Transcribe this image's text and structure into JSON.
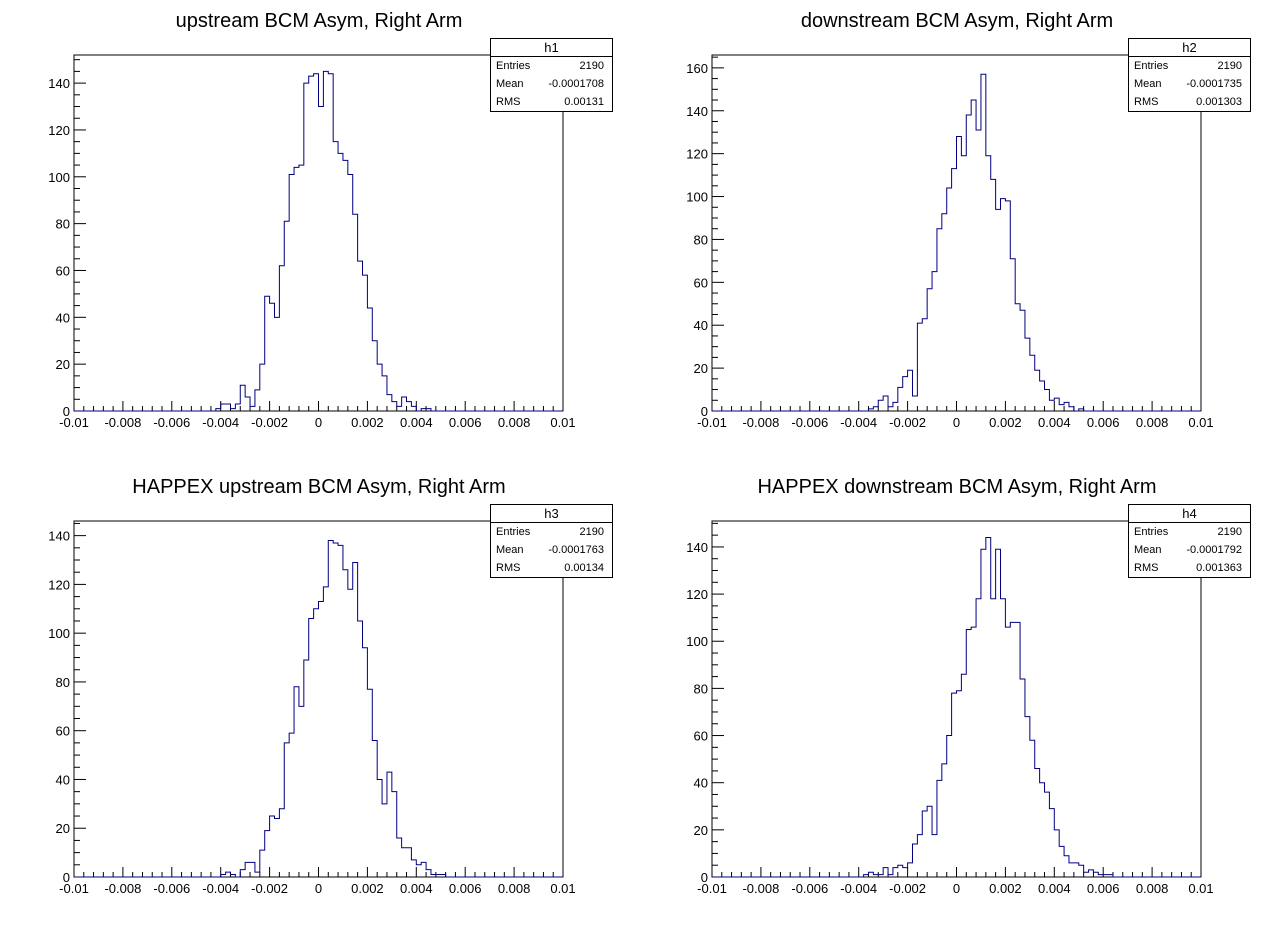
{
  "colors": {
    "histogram_line": "#000080",
    "axis": "#000000"
  },
  "chart_data": [
    {
      "type": "bar",
      "title": "upstream BCM Asym, Right Arm",
      "stats": {
        "name": "h1",
        "entries_label": "Entries",
        "entries": "2190",
        "mean_label": "Mean",
        "mean": "-0.0001708",
        "rms_label": "RMS",
        "rms": "0.00131"
      },
      "xlim": [
        -0.01,
        0.01
      ],
      "ylim": [
        0,
        152
      ],
      "x_ticks": [
        "-0.01",
        "-0.008",
        "-0.006",
        "-0.004",
        "-0.002",
        "0",
        "0.002",
        "0.004",
        "0.006",
        "0.008",
        "0.01"
      ],
      "y_ticks": [
        0,
        20,
        40,
        60,
        80,
        100,
        120,
        140
      ],
      "bins": 100,
      "values": [
        0,
        0,
        0,
        0,
        0,
        0,
        0,
        0,
        0,
        0,
        0,
        0,
        0,
        0,
        0,
        0,
        0,
        0,
        0,
        0,
        0,
        0,
        0,
        0,
        0,
        0,
        0,
        0,
        0,
        1,
        3,
        3,
        1,
        3,
        11,
        6,
        2,
        9,
        20,
        49,
        46,
        40,
        62,
        81,
        101,
        104,
        105,
        140,
        143,
        144,
        130,
        145,
        144,
        115,
        110,
        107,
        101,
        84,
        64,
        58,
        44,
        30,
        20,
        15,
        7,
        4,
        2,
        6,
        4,
        2,
        0,
        1,
        1,
        0,
        0,
        0,
        0,
        0,
        0,
        0,
        0,
        0,
        0,
        0,
        0,
        0,
        0,
        0,
        0,
        0,
        0,
        0,
        0,
        0,
        0,
        0,
        0,
        0,
        0,
        0
      ]
    },
    {
      "type": "bar",
      "title": "downstream BCM Asym, Right Arm",
      "stats": {
        "name": "h2",
        "entries_label": "Entries",
        "entries": "2190",
        "mean_label": "Mean",
        "mean": "-0.0001735",
        "rms_label": "RMS",
        "rms": "0.001303"
      },
      "xlim": [
        -0.01,
        0.01
      ],
      "ylim": [
        0,
        166
      ],
      "x_ticks": [
        "-0.01",
        "-0.008",
        "-0.006",
        "-0.004",
        "-0.002",
        "0",
        "0.002",
        "0.004",
        "0.006",
        "0.008",
        "0.01"
      ],
      "y_ticks": [
        0,
        20,
        40,
        60,
        80,
        100,
        120,
        140,
        160
      ],
      "bins": 100,
      "values": [
        0,
        0,
        0,
        0,
        0,
        0,
        0,
        0,
        0,
        0,
        0,
        0,
        0,
        0,
        0,
        0,
        0,
        0,
        0,
        0,
        0,
        0,
        0,
        0,
        0,
        0,
        0,
        0,
        0,
        0,
        0,
        0,
        1,
        2,
        5,
        7,
        2,
        4,
        11,
        16,
        19,
        7,
        41,
        43,
        57,
        65,
        85,
        92,
        104,
        113,
        128,
        119,
        138,
        145,
        131,
        157,
        119,
        108,
        94,
        99,
        98,
        71,
        50,
        47,
        34,
        26,
        19,
        14,
        10,
        5,
        6,
        3,
        4,
        2,
        0,
        1,
        0,
        0,
        0,
        0,
        0,
        0,
        0,
        0,
        0,
        0,
        0,
        0,
        0,
        0,
        0,
        0,
        0,
        0,
        0,
        0,
        0,
        0,
        0,
        0
      ]
    },
    {
      "type": "bar",
      "title": "HAPPEX upstream BCM Asym, Right Arm",
      "stats": {
        "name": "h3",
        "entries_label": "Entries",
        "entries": "2190",
        "mean_label": "Mean",
        "mean": "-0.0001763",
        "rms_label": "RMS",
        "rms": "0.00134"
      },
      "xlim": [
        -0.01,
        0.01
      ],
      "ylim": [
        0,
        146
      ],
      "x_ticks": [
        "-0.01",
        "-0.008",
        "-0.006",
        "-0.004",
        "-0.002",
        "0",
        "0.002",
        "0.004",
        "0.006",
        "0.008",
        "0.01"
      ],
      "y_ticks": [
        0,
        20,
        40,
        60,
        80,
        100,
        120,
        140
      ],
      "bins": 100,
      "values": [
        0,
        0,
        0,
        0,
        0,
        0,
        0,
        0,
        0,
        0,
        0,
        0,
        0,
        0,
        0,
        0,
        0,
        0,
        0,
        0,
        0,
        0,
        0,
        0,
        0,
        0,
        0,
        0,
        0,
        0,
        1,
        2,
        1,
        0,
        3,
        6,
        6,
        2,
        11,
        19,
        25,
        24,
        28,
        55,
        59,
        78,
        70,
        89,
        106,
        110,
        113,
        119,
        138,
        137,
        136,
        126,
        118,
        129,
        105,
        94,
        77,
        56,
        40,
        30,
        43,
        35,
        16,
        12,
        12,
        7,
        5,
        6,
        3,
        1,
        1,
        1,
        0,
        0,
        0,
        0,
        0,
        0,
        0,
        0,
        0,
        0,
        0,
        0,
        0,
        0,
        0,
        0,
        0,
        0,
        0,
        0,
        0,
        0,
        0,
        0
      ]
    },
    {
      "type": "bar",
      "title": "HAPPEX downstream BCM Asym, Right Arm",
      "stats": {
        "name": "h4",
        "entries_label": "Entries",
        "entries": "2190",
        "mean_label": "Mean",
        "mean": "-0.0001792",
        "rms_label": "RMS",
        "rms": "0.001363"
      },
      "xlim": [
        -0.01,
        0.01
      ],
      "ylim": [
        0,
        151
      ],
      "x_ticks": [
        "-0.01",
        "-0.008",
        "-0.006",
        "-0.004",
        "-0.002",
        "0",
        "0.002",
        "0.004",
        "0.006",
        "0.008",
        "0.01"
      ],
      "y_ticks": [
        0,
        20,
        40,
        60,
        80,
        100,
        120,
        140
      ],
      "bins": 100,
      "values": [
        0,
        0,
        0,
        0,
        0,
        0,
        0,
        0,
        0,
        0,
        0,
        0,
        0,
        0,
        0,
        0,
        0,
        0,
        0,
        0,
        0,
        0,
        0,
        0,
        0,
        0,
        0,
        0,
        0,
        0,
        0,
        1,
        2,
        1,
        1,
        4,
        1,
        4,
        5,
        4,
        6,
        14,
        18,
        28,
        30,
        18,
        41,
        48,
        60,
        78,
        79,
        86,
        105,
        106,
        118,
        139,
        144,
        118,
        139,
        118,
        106,
        108,
        108,
        84,
        68,
        58,
        46,
        40,
        36,
        29,
        20,
        13,
        9,
        6,
        6,
        5,
        2,
        3,
        2,
        1,
        1,
        1,
        0,
        0,
        0,
        0,
        0,
        0,
        0,
        0,
        0,
        0,
        0,
        0,
        0,
        0,
        0,
        0,
        0,
        0
      ]
    }
  ]
}
